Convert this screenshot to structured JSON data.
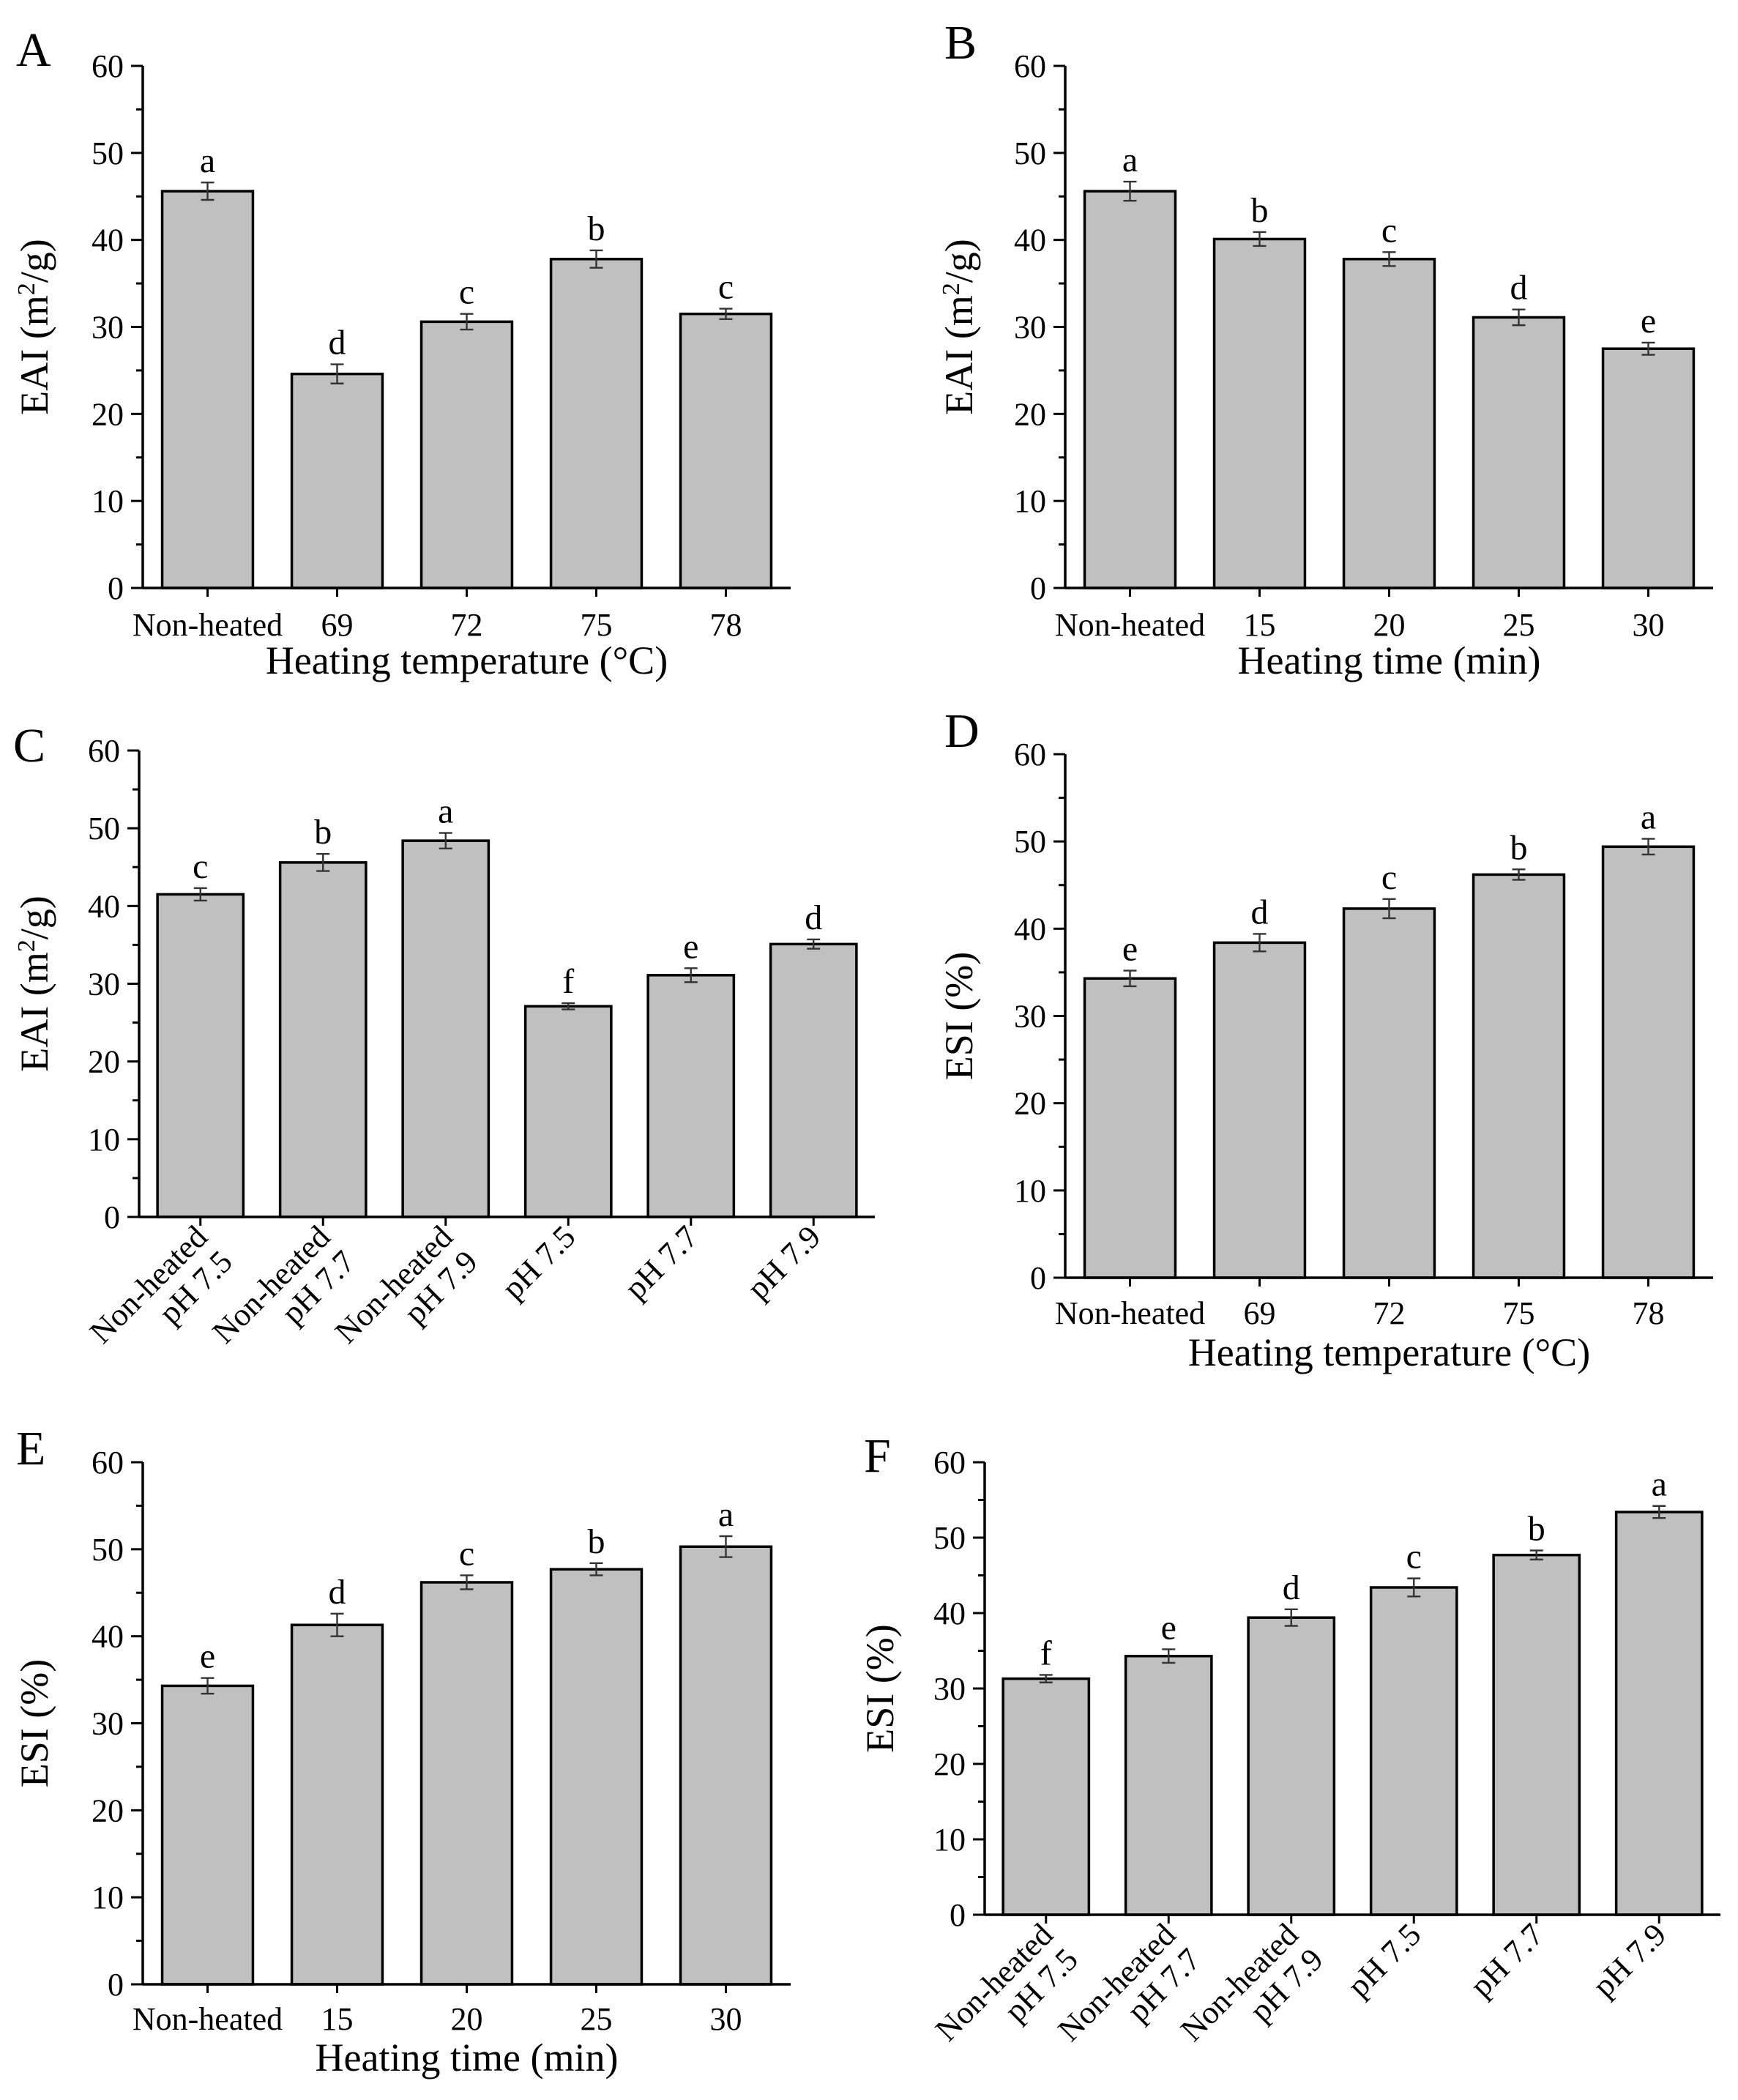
{
  "chart_data": [
    {
      "panel": "A",
      "type": "bar",
      "xlabel": "Heating temperature (°C)",
      "ylabel": "EAI (m²/g)",
      "ylim": [
        0,
        60
      ],
      "yticks": [
        "0",
        "10",
        "20",
        "30",
        "40",
        "50",
        "60"
      ],
      "categories": [
        "Non-heated",
        "69",
        "72",
        "75",
        "78"
      ],
      "values": [
        45.6,
        24.6,
        30.6,
        37.8,
        31.5
      ],
      "errors": [
        1.0,
        1.1,
        0.9,
        1.0,
        0.6
      ],
      "labels": [
        "a",
        "d",
        "c",
        "b",
        "c"
      ]
    },
    {
      "panel": "B",
      "type": "bar",
      "xlabel": "Heating time (min)",
      "ylabel": "EAI (m²/g)",
      "ylim": [
        0,
        60
      ],
      "yticks": [
        "0",
        "10",
        "20",
        "30",
        "40",
        "50",
        "60"
      ],
      "categories": [
        "Non-heated",
        "15",
        "20",
        "25",
        "30"
      ],
      "values": [
        45.6,
        40.1,
        37.8,
        31.1,
        27.5
      ],
      "errors": [
        1.1,
        0.8,
        0.8,
        0.9,
        0.7
      ],
      "labels": [
        "a",
        "b",
        "c",
        "d",
        "e"
      ]
    },
    {
      "panel": "C",
      "type": "bar",
      "xlabel": "",
      "ylabel": "EAI (m²/g)",
      "ylim": [
        0,
        60
      ],
      "yticks": [
        "0",
        "10",
        "20",
        "30",
        "40",
        "50",
        "60"
      ],
      "categories": [
        "Non-heated pH 7.5",
        "Non-heated pH 7.7",
        "Non-heated pH 7.9",
        "pH 7.5",
        "pH 7.7",
        "pH 7.9"
      ],
      "values": [
        41.5,
        45.6,
        48.4,
        27.1,
        31.1,
        35.1
      ],
      "errors": [
        0.8,
        1.1,
        1.0,
        0.4,
        0.9,
        0.6
      ],
      "labels": [
        "c",
        "b",
        "a",
        "f",
        "e",
        "d"
      ]
    },
    {
      "panel": "D",
      "type": "bar",
      "xlabel": "Heating temperature (°C)",
      "ylabel": "ESI (%)",
      "ylim": [
        0,
        60
      ],
      "yticks": [
        "0",
        "10",
        "20",
        "30",
        "40",
        "50",
        "60"
      ],
      "categories": [
        "Non-heated",
        "69",
        "72",
        "75",
        "78"
      ],
      "values": [
        34.3,
        38.4,
        42.3,
        46.2,
        49.4
      ],
      "errors": [
        0.9,
        1.0,
        1.1,
        0.6,
        0.9
      ],
      "labels": [
        "e",
        "d",
        "c",
        "b",
        "a"
      ]
    },
    {
      "panel": "E",
      "type": "bar",
      "xlabel": "Heating time (min)",
      "ylabel": "ESI (%)",
      "ylim": [
        0,
        60
      ],
      "yticks": [
        "0",
        "10",
        "20",
        "30",
        "40",
        "50",
        "60"
      ],
      "categories": [
        "Non-heated",
        "15",
        "20",
        "25",
        "30"
      ],
      "values": [
        34.3,
        41.3,
        46.2,
        47.7,
        50.3
      ],
      "errors": [
        0.9,
        1.3,
        0.8,
        0.7,
        1.2
      ],
      "labels": [
        "e",
        "d",
        "c",
        "b",
        "a"
      ]
    },
    {
      "panel": "F",
      "type": "bar",
      "xlabel": "",
      "ylabel": "ESI (%)",
      "ylim": [
        0,
        60
      ],
      "yticks": [
        "0",
        "10",
        "20",
        "30",
        "40",
        "50",
        "60"
      ],
      "categories": [
        "Non-heated pH 7.5",
        "Non-heated pH 7.7",
        "Non-heated pH 7.9",
        "pH 7.5",
        "pH 7.7",
        "pH 7.9"
      ],
      "values": [
        31.3,
        34.3,
        39.4,
        43.4,
        47.7,
        53.4
      ],
      "errors": [
        0.5,
        0.9,
        1.1,
        1.2,
        0.6,
        0.8
      ],
      "labels": [
        "f",
        "e",
        "d",
        "c",
        "b",
        "a"
      ]
    }
  ]
}
